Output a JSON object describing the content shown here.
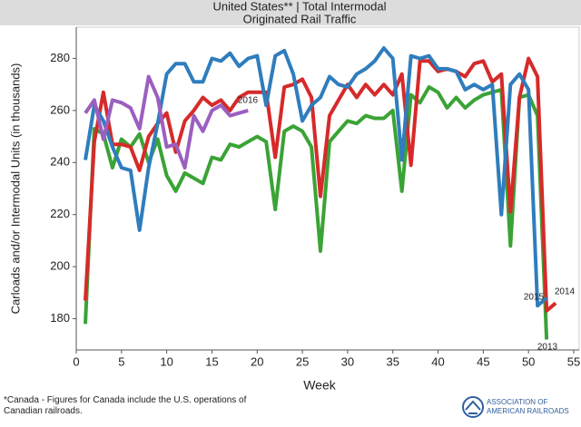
{
  "chart_data": {
    "type": "line",
    "title": "United States** | Total Intermodal",
    "subtitle": "Originated Rail Traffic",
    "x_label": "Week",
    "y_label": "Carloads and/or Intermodal Units (in thousands)",
    "footnote": "*Canada - Figures for Canada include the U.S. operations of Canadian railroads.",
    "source": "ASSOCIATION OF AMERICAN RAILROADS",
    "x": [
      1,
      2,
      3,
      4,
      5,
      6,
      7,
      8,
      9,
      10,
      11,
      12,
      13,
      14,
      15,
      16,
      17,
      18,
      19,
      20,
      21,
      22,
      23,
      24,
      25,
      26,
      27,
      28,
      29,
      30,
      31,
      32,
      33,
      34,
      35,
      36,
      37,
      38,
      39,
      40,
      41,
      42,
      43,
      44,
      45,
      46,
      47,
      48,
      49,
      50,
      51,
      52,
      53
    ],
    "xlim": [
      0,
      55
    ],
    "xticks": [
      0,
      5,
      10,
      15,
      20,
      25,
      30,
      35,
      40,
      45,
      50,
      55
    ],
    "ylim": [
      168,
      292
    ],
    "yticks": [
      180,
      200,
      220,
      240,
      260,
      280
    ],
    "series": [
      {
        "name": "2013",
        "color": "#3aa335",
        "values": [
          178,
          253,
          251,
          238,
          249,
          246,
          251,
          240,
          249,
          235,
          229,
          236,
          234,
          232,
          242,
          241,
          247,
          246,
          248,
          250,
          248,
          222,
          252,
          254,
          252,
          246,
          206,
          248,
          252,
          256,
          255,
          258,
          257,
          257,
          260,
          229,
          266,
          263,
          269,
          267,
          261,
          265,
          261,
          264,
          266,
          267,
          268,
          208,
          265,
          266,
          258,
          172,
          null
        ]
      },
      {
        "name": "2014",
        "color": "#d62a2a",
        "values": [
          187,
          248,
          267,
          247,
          247,
          246,
          237,
          250,
          255,
          259,
          244,
          256,
          260,
          265,
          262,
          264,
          260,
          265,
          267,
          267,
          267,
          242,
          269,
          270,
          272,
          265,
          227,
          258,
          264,
          270,
          265,
          270,
          266,
          270,
          266,
          274,
          239,
          279,
          279,
          275,
          276,
          275,
          273,
          278,
          279,
          271,
          274,
          221,
          265,
          280,
          273,
          183,
          186
        ]
      },
      {
        "name": "2015",
        "color": "#2f7dbd",
        "values": [
          241,
          262,
          256,
          246,
          238,
          237,
          214,
          238,
          255,
          274,
          278,
          278,
          271,
          271,
          280,
          279,
          282,
          277,
          280,
          281,
          262,
          281,
          283,
          274,
          256,
          262,
          265,
          273,
          270,
          269,
          274,
          276,
          279,
          284,
          280,
          241,
          281,
          280,
          281,
          276,
          276,
          275,
          268,
          270,
          268,
          270,
          220,
          270,
          274,
          268,
          185,
          188,
          null
        ]
      },
      {
        "name": "2016",
        "color": "#9b5fc0",
        "values": [
          259,
          264,
          249,
          264,
          263,
          261,
          253,
          273,
          265,
          246,
          247,
          238,
          258,
          252,
          260,
          262,
          258,
          259,
          260,
          null,
          null,
          null,
          null,
          null,
          null,
          null,
          null,
          null,
          null,
          null,
          null,
          null,
          null,
          null,
          null,
          null,
          null,
          null,
          null,
          null,
          null,
          null,
          null,
          null,
          null,
          null,
          null,
          null,
          null,
          null,
          null,
          null,
          null
        ]
      }
    ],
    "grid": false
  }
}
